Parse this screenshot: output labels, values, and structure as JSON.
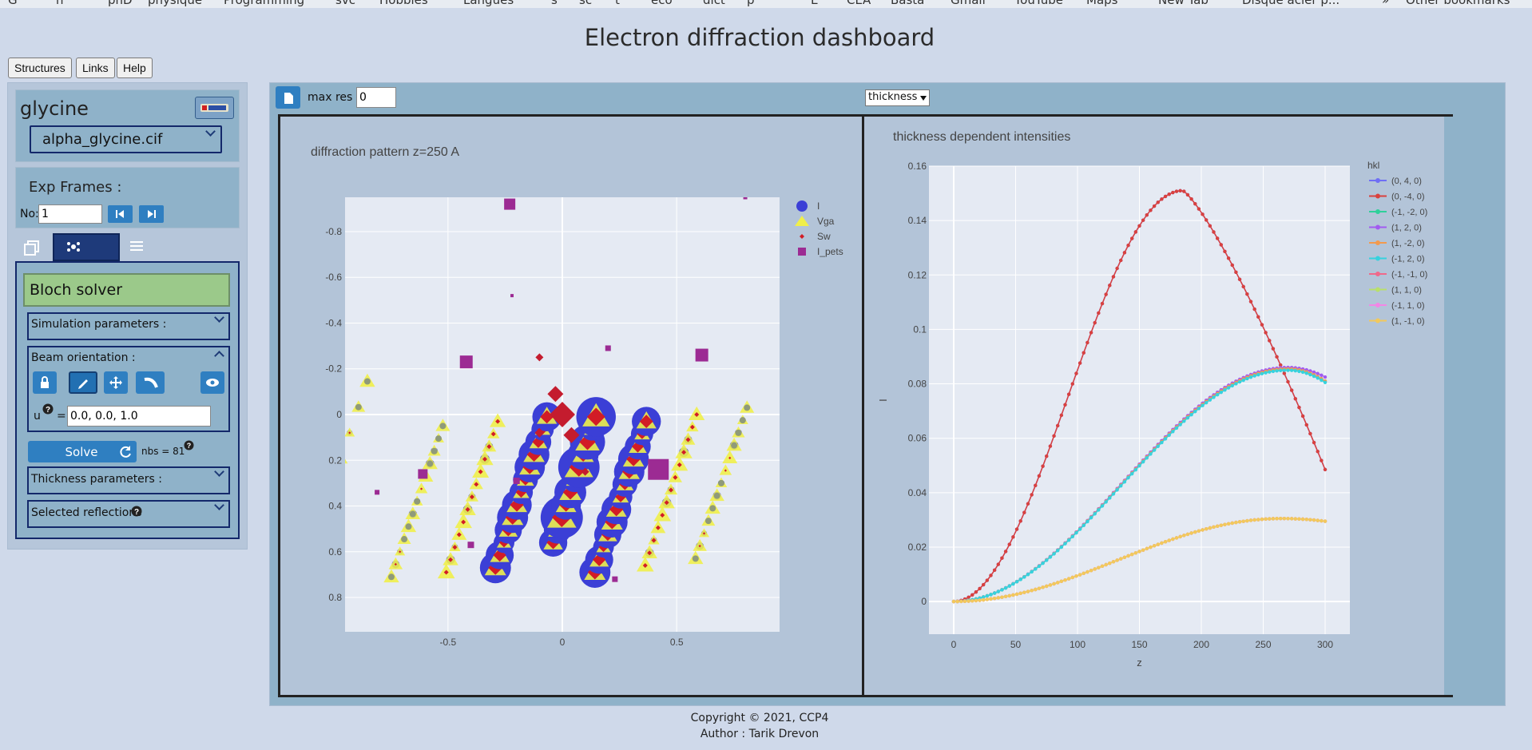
{
  "bookmarks": [
    "G",
    "n",
    "phD",
    "physique",
    "Programming",
    "svc",
    "Hobbies",
    "Langues",
    "s",
    "sc",
    "t",
    "eco",
    "dict",
    "p",
    "E",
    "CEA",
    "Basta",
    "Gmail",
    "YouTube",
    "Maps",
    "New Tab",
    "Disque acier p...",
    "»",
    "Other bookmarks"
  ],
  "title": "Electron diffraction dashboard",
  "menu": {
    "structures": "Structures",
    "links": "Links",
    "help": "Help"
  },
  "structure": {
    "name": "glycine",
    "cif": "alpha_glycine.cif"
  },
  "frames": {
    "title": "Exp Frames :",
    "no_label": "No:",
    "no_value": "1"
  },
  "solver": {
    "title": "Bloch solver",
    "sim_params": "Simulation parameters :",
    "beam_orientation": "Beam orientation :",
    "u_label": "u",
    "u_eq": "=",
    "u_value": "0.0, 0.0, 1.0",
    "solve": "Solve",
    "nbs": "nbs = 81",
    "thickness_params": "Thickness parameters :",
    "selected_reflections": "Selected reflections"
  },
  "toolbar": {
    "maxres_label": "max res :",
    "maxres_value": "0",
    "select_value": "thickness"
  },
  "footer": {
    "copyright": "Copyright © 2021, CCP4",
    "author": "Author : Tarik Drevon"
  },
  "colors": {
    "panel": "#8fb2c9",
    "accent": "#2f7fc1",
    "solver": "#9bc98a"
  },
  "chart_data": [
    {
      "type": "scatter",
      "title": "diffraction pattern z=250 A",
      "xlabel": "",
      "ylabel": "",
      "xlim": [
        -0.95,
        0.95
      ],
      "ylim": [
        0.95,
        -0.95
      ],
      "xticks": [
        -0.5,
        0,
        0.5
      ],
      "yticks": [
        -0.8,
        -0.6,
        -0.4,
        -0.2,
        0,
        0.2,
        0.4,
        0.6,
        0.8
      ],
      "legend": [
        "I",
        "Vga",
        "Sw",
        "I_pets"
      ],
      "legend_position": "top-right",
      "colors": {
        "I": "#3b3fd6",
        "Vga": "#f0ef4a",
        "Sw": "#d21c26",
        "I_pets": "#9c2b93"
      },
      "rows": [
        {
          "x0": -0.93,
          "y0": 0.08,
          "dx": 0.155,
          "dy": -0.45,
          "from": -1,
          "to": 1,
          "cls": "o"
        },
        {
          "x0": -0.71,
          "y0": 0.6,
          "dx": 0.075,
          "dy": -0.22,
          "from": -1,
          "to": 5,
          "cls": "o"
        },
        {
          "x0": -0.47,
          "y0": 0.58,
          "dx": 0.075,
          "dy": -0.22,
          "from": -1,
          "to": 5,
          "cls": "m"
        },
        {
          "x0": -0.255,
          "y0": 0.56,
          "dx": 0.075,
          "dy": -0.22,
          "from": -1,
          "to": 5,
          "cls": "s"
        },
        {
          "x0": -0.04,
          "y0": 0.56,
          "dx": 0.075,
          "dy": -0.22,
          "from": 0,
          "to": 5,
          "cls": "c"
        },
        {
          "x0": 0.18,
          "y0": 0.58,
          "dx": 0.075,
          "dy": -0.22,
          "from": -1,
          "to": 5,
          "cls": "s"
        },
        {
          "x0": 0.4,
          "y0": 0.55,
          "dx": 0.075,
          "dy": -0.22,
          "from": -1,
          "to": 5,
          "cls": "m"
        },
        {
          "x0": 0.62,
          "y0": 0.52,
          "dx": 0.075,
          "dy": -0.22,
          "from": -1,
          "to": 5,
          "cls": "o"
        }
      ],
      "pets": [
        [
          -0.23,
          -0.92,
          14
        ],
        [
          -0.42,
          -0.23,
          16
        ],
        [
          0.61,
          -0.26,
          16
        ],
        [
          0.42,
          0.24,
          26
        ],
        [
          -0.61,
          0.26,
          12
        ],
        [
          -0.2,
          0.29,
          8
        ],
        [
          -0.4,
          0.57,
          8
        ],
        [
          0.23,
          0.72,
          7
        ],
        [
          0.2,
          -0.29,
          7
        ],
        [
          0.8,
          -0.95,
          5
        ],
        [
          -0.81,
          0.34,
          6
        ],
        [
          -0.22,
          -0.52,
          4
        ]
      ]
    },
    {
      "type": "line",
      "title": "thickness dependent intensities",
      "xlabel": "z",
      "ylabel": "I",
      "xlim": [
        -20,
        320
      ],
      "ylim": [
        -0.012,
        0.16
      ],
      "xticks": [
        0,
        50,
        100,
        150,
        200,
        250,
        300
      ],
      "yticks": [
        0,
        0.02,
        0.04,
        0.06,
        0.08,
        0.1,
        0.12,
        0.14,
        0.16
      ],
      "legend_title": "hkl",
      "legend_position": "right",
      "series": [
        {
          "name": "(0, 4, 0)",
          "color": "#6f6ff5",
          "peak": 0.151,
          "zmax": 185,
          "end": 0.0485,
          "shape": "peak"
        },
        {
          "name": "(0, -4, 0)",
          "color": "#d9413e",
          "peak": 0.151,
          "zmax": 185,
          "end": 0.0485,
          "shape": "peak"
        },
        {
          "name": "(-1, -2, 0)",
          "color": "#2fd09a",
          "peak": 0.0855,
          "zmax": 270,
          "end": 0.081,
          "shape": "mid"
        },
        {
          "name": "(1, 2, 0)",
          "color": "#a25bf0",
          "peak": 0.086,
          "zmax": 270,
          "end": 0.0825,
          "shape": "mid"
        },
        {
          "name": "(1, -2, 0)",
          "color": "#f39a4e",
          "peak": 0.0855,
          "zmax": 270,
          "end": 0.081,
          "shape": "mid"
        },
        {
          "name": "(-1, 2, 0)",
          "color": "#36d2de",
          "peak": 0.085,
          "zmax": 270,
          "end": 0.0805,
          "shape": "mid"
        },
        {
          "name": "(-1, -1, 0)",
          "color": "#f0698a",
          "peak": 0.0305,
          "zmax": 265,
          "end": 0.0295,
          "shape": "low"
        },
        {
          "name": "(1, 1, 0)",
          "color": "#b9e06b",
          "peak": 0.0305,
          "zmax": 265,
          "end": 0.0295,
          "shape": "low"
        },
        {
          "name": "(-1, 1, 0)",
          "color": "#f386e6",
          "peak": 0.0305,
          "zmax": 265,
          "end": 0.0295,
          "shape": "low"
        },
        {
          "name": "(1, -1, 0)",
          "color": "#f2c95c",
          "peak": 0.0305,
          "zmax": 265,
          "end": 0.0295,
          "shape": "low"
        }
      ]
    }
  ]
}
